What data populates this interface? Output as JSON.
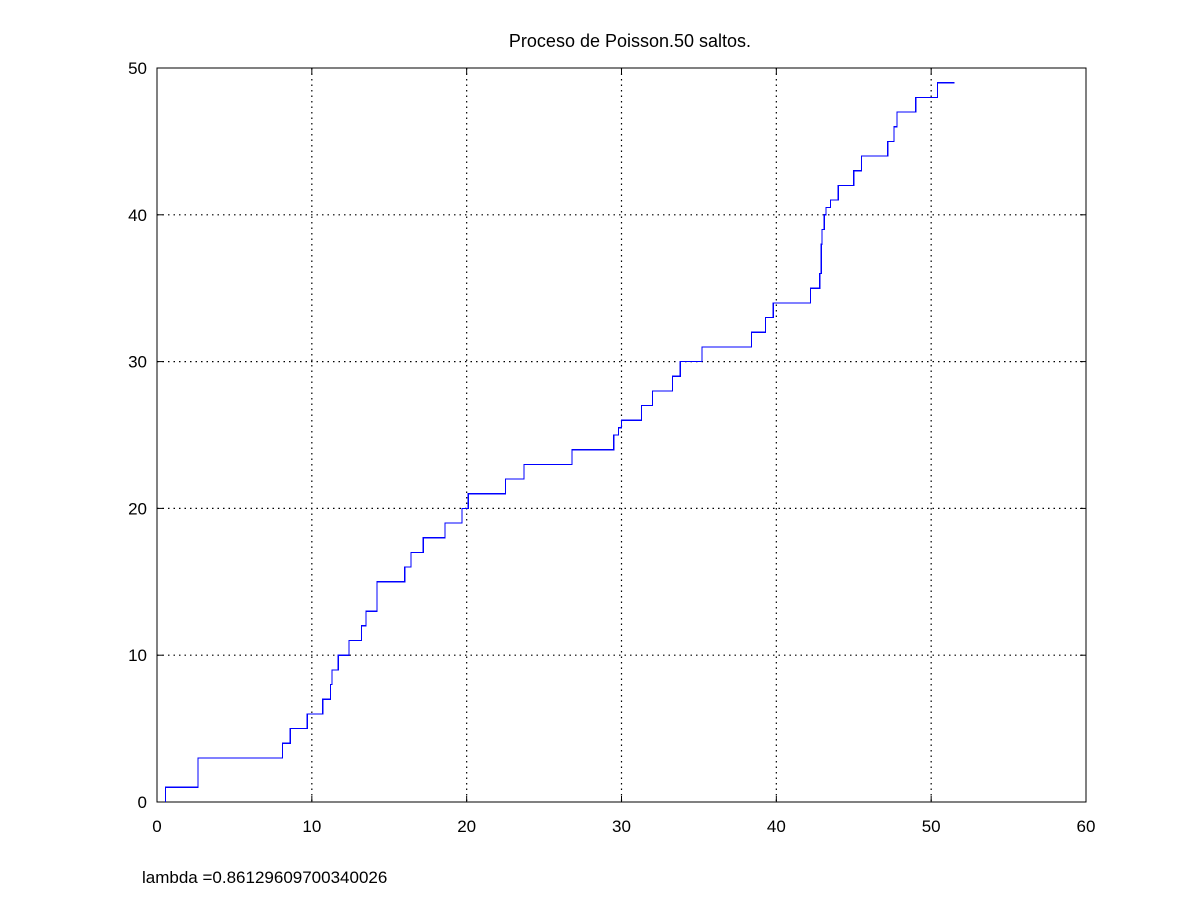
{
  "chart_data": {
    "type": "line",
    "step": true,
    "title": "Proceso de Poisson.50 saltos.",
    "xlabel": "",
    "ylabel": "",
    "xlim": [
      0,
      60
    ],
    "ylim": [
      0,
      50
    ],
    "xticks": [
      0,
      10,
      20,
      30,
      40,
      50,
      60
    ],
    "yticks": [
      0,
      10,
      20,
      30,
      40,
      50
    ],
    "grid": true,
    "line_color": "#0000ff",
    "x": [
      0.55,
      2.65,
      8.1,
      8.6,
      9.7,
      10.7,
      11.2,
      11.3,
      11.7,
      12.4,
      13.2,
      13.5,
      14.2,
      16.0,
      16.4,
      17.2,
      18.6,
      19.7,
      20.1,
      22.5,
      23.7,
      26.8,
      29.5,
      29.8,
      30.0,
      31.3,
      32.0,
      33.3,
      33.8,
      35.2,
      38.4,
      39.3,
      39.8,
      42.2,
      42.8,
      42.9,
      42.95,
      43.1,
      43.2,
      43.5,
      44.0,
      45.0,
      45.5,
      47.2,
      47.6,
      47.8,
      49.0,
      50.4,
      51.5
    ],
    "y": [
      1,
      3,
      4,
      5,
      6,
      7,
      8,
      9,
      10,
      11,
      12,
      13,
      15,
      16,
      17,
      18,
      19,
      20,
      21,
      22,
      23,
      24,
      25,
      25.5,
      26,
      27,
      28,
      29,
      30,
      31,
      32,
      33,
      34,
      35,
      36,
      38,
      39,
      40,
      40.5,
      41,
      42,
      43,
      44,
      45,
      46,
      47,
      48,
      49,
      49
    ]
  },
  "annotation": {
    "text": "lambda =0.86129609700340026"
  }
}
